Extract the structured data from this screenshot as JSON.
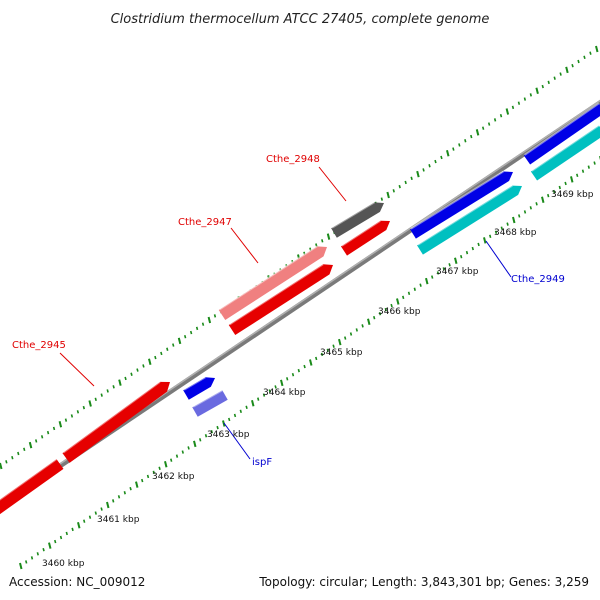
{
  "title": "Clostridium thermocellum ATCC 27405, complete genome",
  "accession": "Accession: NC_009012",
  "summary": "Topology: circular; Length: 3,843,301 bp; Genes: 3,259",
  "colors": {
    "forward_gene": "#e60000",
    "forward_pseudo": "#f08080",
    "forward_other": "#555555",
    "reverse_gene": "#0000e6",
    "reverse_light": "#00c0c0",
    "reverse_pale": "#6a6ae0",
    "backbone": "#888888",
    "ticks": "#1a8a1a",
    "label_forward": "#e00000",
    "label_reverse": "#0000d0"
  },
  "scale_labels": [
    "3460 kbp",
    "3461 kbp",
    "3462 kbp",
    "3463 kbp",
    "3464 kbp",
    "3465 kbp",
    "3466 kbp",
    "3467 kbp",
    "3468 kbp",
    "3469 kbp"
  ],
  "gene_labels": [
    {
      "id": "cthe-2945",
      "text": "Cthe_2945",
      "strand": "forward"
    },
    {
      "id": "cthe-2947",
      "text": "Cthe_2947",
      "strand": "forward"
    },
    {
      "id": "cthe-2948",
      "text": "Cthe_2948",
      "strand": "forward"
    },
    {
      "id": "ispf",
      "text": "ispF",
      "strand": "reverse"
    },
    {
      "id": "cthe-2949",
      "text": "Cthe_2949",
      "strand": "reverse"
    }
  ]
}
